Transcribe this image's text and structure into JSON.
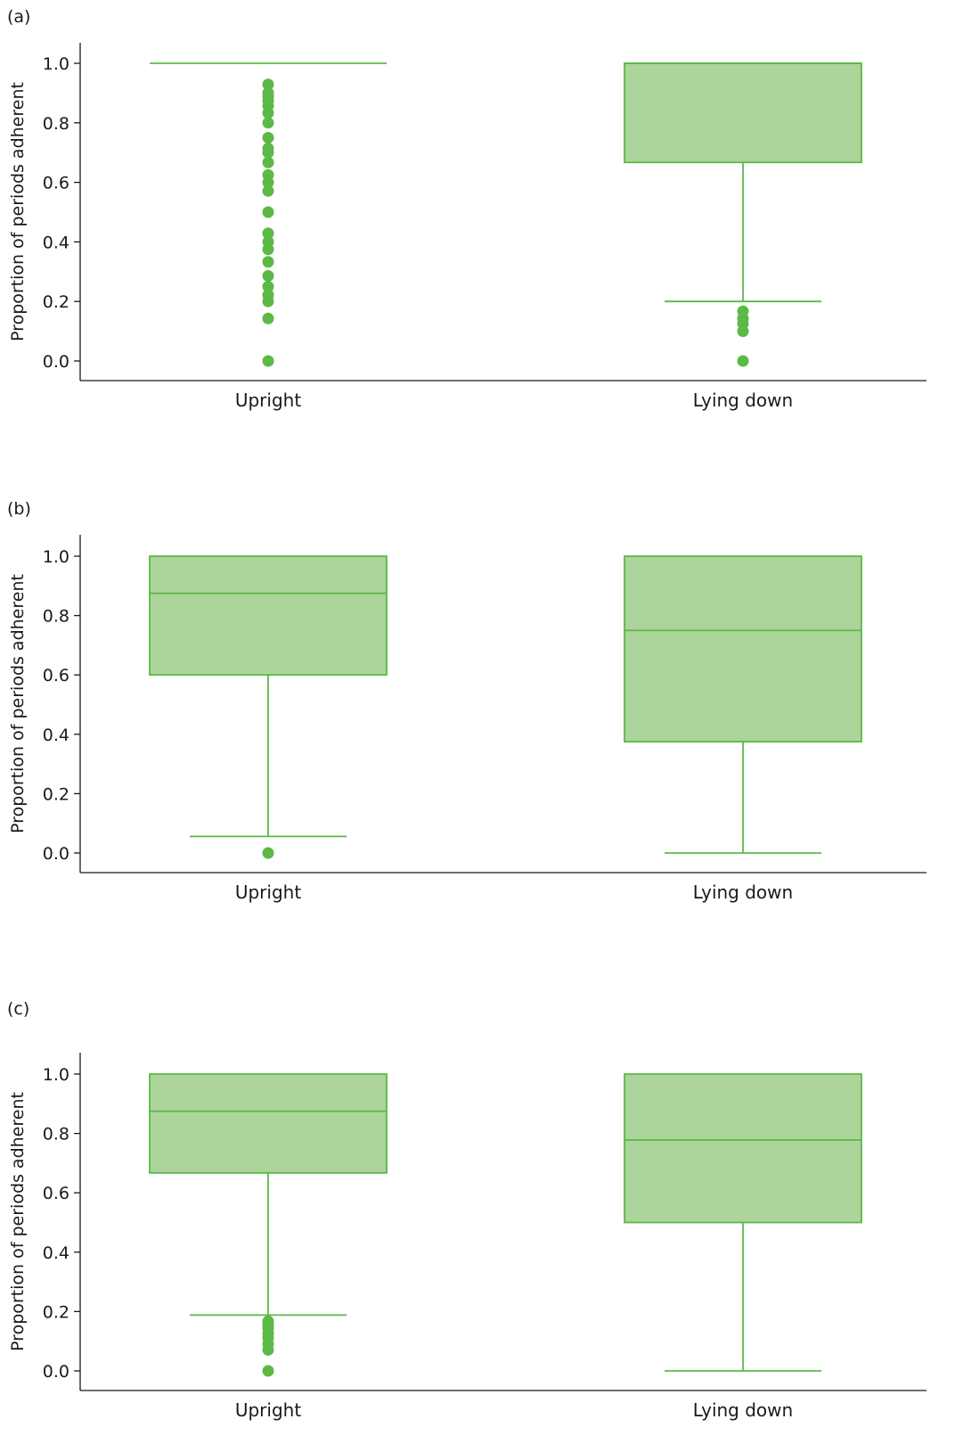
{
  "colors": {
    "box_fill": "#acd49b",
    "box_stroke": "#5cb947",
    "outlier": "#5cb947",
    "axis": "#1a1a1a"
  },
  "chart_data": [
    {
      "panel_label": "(a)",
      "type": "box",
      "ylabel": "Proportion of periods adherent",
      "ylim": [
        0,
        1.05
      ],
      "yticks": [
        "0.0",
        "0.2",
        "0.4",
        "0.6",
        "0.8",
        "1.0"
      ],
      "categories": [
        "Upright",
        "Lying down"
      ],
      "boxes": [
        {
          "category": "Upright",
          "whisker_low": 1.0,
          "q1": 1.0,
          "median": 1.0,
          "q3": 1.0,
          "whisker_high": 1.0,
          "outliers": [
            0.0,
            0.143,
            0.2,
            0.222,
            0.25,
            0.286,
            0.333,
            0.375,
            0.4,
            0.429,
            0.5,
            0.571,
            0.6,
            0.625,
            0.667,
            0.7,
            0.714,
            0.75,
            0.8,
            0.833,
            0.857,
            0.875,
            0.889,
            0.9,
            0.929
          ]
        },
        {
          "category": "Lying down",
          "whisker_low": 0.2,
          "q1": 0.667,
          "median": 1.0,
          "q3": 1.0,
          "whisker_high": 1.0,
          "outliers": [
            0.0,
            0.1,
            0.125,
            0.143,
            0.167
          ]
        }
      ]
    },
    {
      "panel_label": "(b)",
      "type": "box",
      "ylabel": "Proportion of periods adherent",
      "ylim": [
        0,
        1.05
      ],
      "yticks": [
        "0.0",
        "0.2",
        "0.4",
        "0.6",
        "0.8",
        "1.0"
      ],
      "categories": [
        "Upright",
        "Lying down"
      ],
      "boxes": [
        {
          "category": "Upright",
          "whisker_low": 0.056,
          "q1": 0.6,
          "median": 0.875,
          "q3": 1.0,
          "whisker_high": 1.0,
          "outliers": [
            0.0
          ]
        },
        {
          "category": "Lying down",
          "whisker_low": 0.0,
          "q1": 0.375,
          "median": 0.75,
          "q3": 1.0,
          "whisker_high": 1.0,
          "outliers": []
        }
      ]
    },
    {
      "panel_label": "(c)",
      "type": "box",
      "ylabel": "Proportion of periods adherent",
      "ylim": [
        0,
        1.05
      ],
      "yticks": [
        "0.0",
        "0.2",
        "0.4",
        "0.6",
        "0.8",
        "1.0"
      ],
      "categories": [
        "Upright",
        "Lying down"
      ],
      "boxes": [
        {
          "category": "Upright",
          "whisker_low": 0.188,
          "q1": 0.667,
          "median": 0.875,
          "q3": 1.0,
          "whisker_high": 1.0,
          "outliers": [
            0.0,
            0.071,
            0.091,
            0.111,
            0.125,
            0.143,
            0.154,
            0.167
          ]
        },
        {
          "category": "Lying down",
          "whisker_low": 0.0,
          "q1": 0.5,
          "median": 0.778,
          "q3": 1.0,
          "whisker_high": 1.0,
          "outliers": []
        }
      ]
    }
  ]
}
